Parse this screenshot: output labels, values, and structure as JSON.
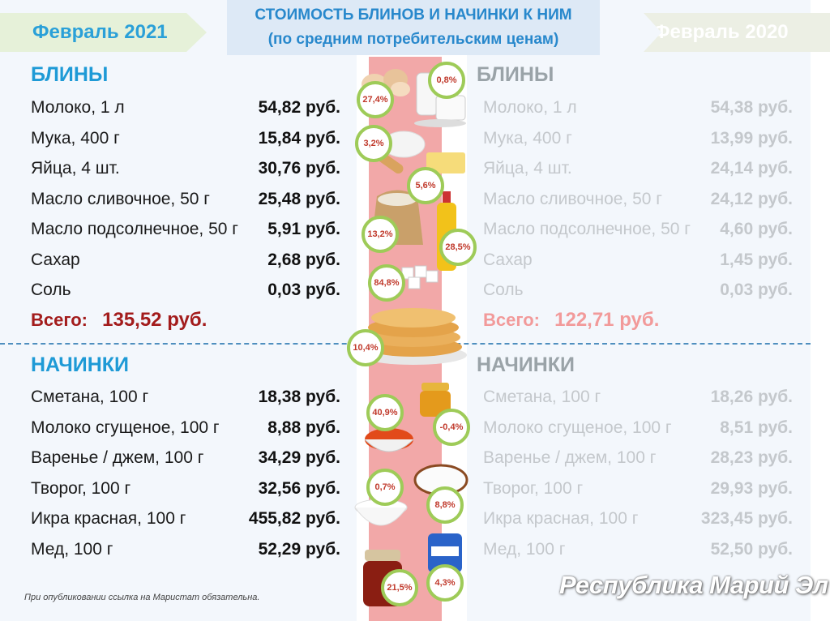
{
  "header": {
    "left_tag": "Февраль 2021",
    "right_tag": "Февраль 2020",
    "title_line1": "СТОИМОСТЬ БЛИНОВ И НАЧИНКИ К НИМ",
    "title_line2": "(по средним потребительским ценам)"
  },
  "left": {
    "pancakes_heading": "БЛИНЫ",
    "pancakes": [
      {
        "label": "Молоко, 1 л",
        "value": "54,82 руб."
      },
      {
        "label": "Мука, 400 г",
        "value": "15,84 руб."
      },
      {
        "label": "Яйца, 4 шт.",
        "value": "30,76 руб."
      },
      {
        "label": "Масло сливочное, 50 г",
        "value": "25,48 руб."
      },
      {
        "label": "Масло подсолнечное, 50 г",
        "value": "5,91 руб."
      },
      {
        "label": "Сахар",
        "value": "2,68 руб."
      },
      {
        "label": "Соль",
        "value": "0,03 руб."
      }
    ],
    "total_label": "Всего:",
    "total_value": "135,52 руб.",
    "fillings_heading": "НАЧИНКИ",
    "fillings": [
      {
        "label": "Сметана, 100 г",
        "value": "18,38 руб."
      },
      {
        "label": "Молоко сгущеное, 100 г",
        "value": "8,88 руб."
      },
      {
        "label": "Варенье / джем, 100 г",
        "value": "34,29 руб."
      },
      {
        "label": "Творог, 100 г",
        "value": "32,56 руб."
      },
      {
        "label": "Икра красная, 100 г",
        "value": "455,82 руб."
      },
      {
        "label": "Мед, 100 г",
        "value": "52,29 руб."
      }
    ]
  },
  "right": {
    "pancakes_heading": "БЛИНЫ",
    "pancakes": [
      {
        "label": "Молоко, 1 л",
        "value": "54,38 руб."
      },
      {
        "label": "Мука, 400 г",
        "value": "13,99 руб."
      },
      {
        "label": "Яйца, 4 шт.",
        "value": "24,14 руб."
      },
      {
        "label": "Масло сливочное, 50 г",
        "value": "24,12 руб."
      },
      {
        "label": "Масло подсолнечное, 50 г",
        "value": "4,60 руб."
      },
      {
        "label": "Сахар",
        "value": "1,45 руб."
      },
      {
        "label": "Соль",
        "value": "0,03 руб."
      }
    ],
    "total_label": "Всего:",
    "total_value": "122,71 руб.",
    "fillings_heading": "НАЧИНКИ",
    "fillings": [
      {
        "label": "Сметана, 100 г",
        "value": "18,26 руб."
      },
      {
        "label": "Молоко сгущеное, 100 г",
        "value": "8,51 руб."
      },
      {
        "label": "Варенье / джем, 100 г",
        "value": "28,23 руб."
      },
      {
        "label": "Творог, 100 г",
        "value": "29,93 руб."
      },
      {
        "label": "Икра красная, 100 г",
        "value": "323,45 руб."
      },
      {
        "label": "Мед, 100 г",
        "value": "52,50 руб."
      }
    ]
  },
  "badges": [
    "0,8%",
    "27,4%",
    "3,2%",
    "5,6%",
    "13,2%",
    "28,5%",
    "84,8%",
    "10,4%",
    "40,9%",
    "-0,4%",
    "0,7%",
    "8,8%",
    "21,5%",
    "4,3%"
  ],
  "footnote": "При опубликовании ссылка на Маристат обязательна.",
  "brand": "Республика Марий Эл",
  "colors": {
    "accent_blue": "#1e9ad6",
    "total_red_2021": "#a31c1c",
    "total_red_2020": "#f29a9a",
    "strip_pink": "#f2a8a8",
    "badge_green": "#9ecb58"
  }
}
